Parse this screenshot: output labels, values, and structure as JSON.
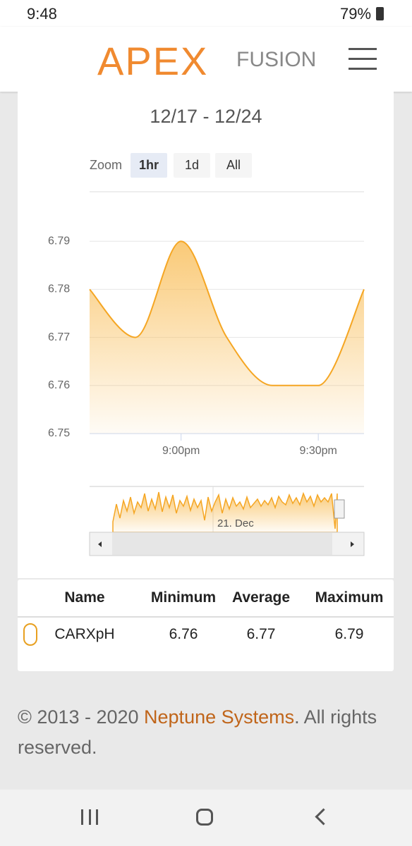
{
  "status_bar": {
    "time": "9:48",
    "battery": "79%"
  },
  "header": {
    "logo": "APEX",
    "logo_suffix": "FUSION"
  },
  "chart": {
    "type": "area",
    "title": "12/17 - 12/24",
    "zoom_label": "Zoom",
    "zoom_buttons": [
      "1hr",
      "1d",
      "All"
    ],
    "x": [
      1240,
      1250,
      1260,
      1270,
      1280,
      1290,
      1300
    ],
    "values": [
      6.78,
      6.77,
      6.79,
      6.77,
      6.76,
      6.76,
      6.78
    ],
    "color": "#f5a623",
    "xlim": [
      1240,
      1300
    ],
    "ylim": [
      6.75,
      6.8
    ],
    "yticks": [
      6.75,
      6.76,
      6.77,
      6.78,
      6.79
    ],
    "xticks": [
      {
        "value": 1260,
        "label": "9:00pm"
      },
      {
        "value": 1290,
        "label": "9:30pm"
      }
    ],
    "grid": true,
    "navigator_label": "21. Dec"
  },
  "table": {
    "columns": [
      "Name",
      "Minimum",
      "Average",
      "Maximum"
    ],
    "rows": [
      [
        "CARXpH",
        6.76,
        6.77,
        6.79
      ]
    ]
  },
  "footer": {
    "prefix": "© 2013 - 2020 ",
    "link": "Neptune Systems",
    "suffix": ". All rights reserved."
  }
}
